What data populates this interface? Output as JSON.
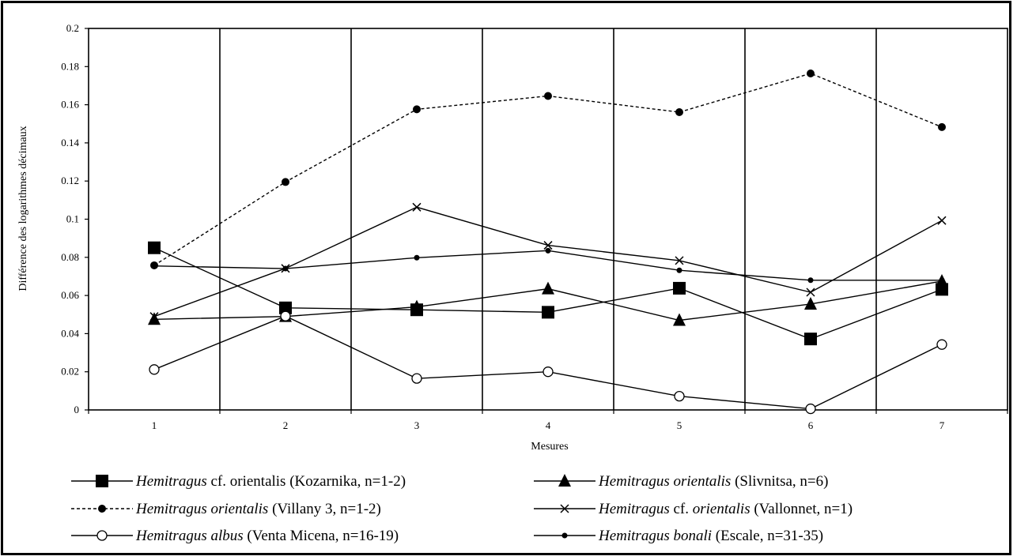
{
  "chart_data": {
    "type": "line",
    "title": "",
    "xlabel": "Mesures",
    "ylabel": "Différence des logarithmes décimaux",
    "categories": [
      "1",
      "2",
      "3",
      "4",
      "5",
      "6",
      "7"
    ],
    "yticks": [
      "0",
      "0.02",
      "0.04",
      "0.06",
      "0.08",
      "0.1",
      "0.12",
      "0.14",
      "0.16",
      "0.18",
      "0.2"
    ],
    "ylim": [
      0,
      0.2
    ],
    "grid": "vertical",
    "legend_position": "bottom",
    "series": [
      {
        "name": "Hemitragus cf. orientalis (Kozarnika, n=1-2)",
        "genus": "Hemitragus",
        "qualifier": "cf. orientalis",
        "locality": "(Kozarnika, n=1-2)",
        "marker": "square",
        "line": "solid",
        "values": [
          0.085,
          0.0535,
          0.0525,
          0.0512,
          0.0638,
          0.0372,
          0.0632
        ]
      },
      {
        "name": "Hemitragus orientalis (Slivnitsa, n=6)",
        "genus": "Hemitragus",
        "qualifier": "orientalis",
        "locality": "(Slivnitsa, n=6)",
        "marker": "triangle",
        "line": "solid",
        "values": [
          0.0475,
          0.049,
          0.054,
          0.0635,
          0.047,
          0.0555,
          0.0675
        ]
      },
      {
        "name": "Hemitragus orientalis (Villany 3, n=1-2)",
        "genus": "Hemitragus",
        "qualifier": "orientalis",
        "locality": "(Villany 3, n=1-2)",
        "marker": "dot",
        "line": "dashed",
        "values": [
          0.0758,
          0.1195,
          0.1576,
          0.1646,
          0.1561,
          0.1764,
          0.1483
        ]
      },
      {
        "name": "Hemitragus cf. orientalis (Vallonnet, n=1)",
        "genus": "Hemitragus",
        "qualifier": "cf. orientalis",
        "locality": "(Vallonnet, n=1)",
        "marker": "cross",
        "line": "solid",
        "values": [
          0.049,
          0.0742,
          0.1063,
          0.0863,
          0.0783,
          0.0617,
          0.0993
        ]
      },
      {
        "name": "Hemitragus albus (Venta Micena, n=16-19)",
        "genus": "Hemitragus",
        "qualifier": "albus",
        "locality": "(Venta Micena, n=16-19)",
        "marker": "circle-open",
        "line": "solid",
        "values": [
          0.0212,
          0.0492,
          0.0165,
          0.02,
          0.0072,
          0.0006,
          0.0343
        ]
      },
      {
        "name": "Hemitragus bonali (Escale, n=31-35)",
        "genus": "Hemitragus",
        "qualifier": "bonali",
        "locality": "(Escale, n=31-35)",
        "marker": "small-dot",
        "line": "solid",
        "values": [
          0.0755,
          0.0741,
          0.0798,
          0.0835,
          0.0732,
          0.068,
          0.068
        ]
      }
    ]
  }
}
